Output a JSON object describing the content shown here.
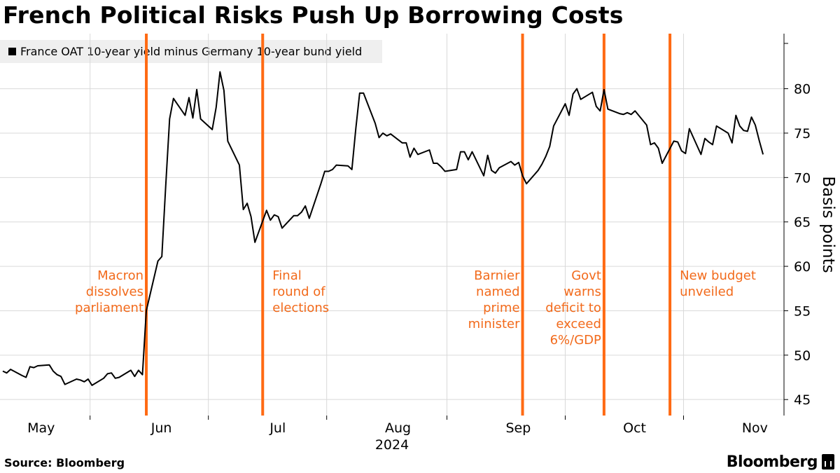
{
  "header": {
    "title": "French Political Risks Push Up Borrowing Costs"
  },
  "footer": {
    "source": "Source: Bloomberg",
    "brand": "Bloomberg"
  },
  "colors": {
    "line": "#000000",
    "event_line": "#ff6a13",
    "event_text": "#f26a1b",
    "grid": "#d9d9d9",
    "legend_bg": "#efefef"
  },
  "chart_data": {
    "type": "line",
    "title": "French Political Risks Push Up Borrowing Costs",
    "ylabel": "Basis points",
    "xlabel": "",
    "year_label": "2024",
    "ylim": [
      43.2,
      86.2
    ],
    "yticks": [
      45,
      50,
      55,
      60,
      65,
      70,
      75,
      80
    ],
    "grid": true,
    "legend_position": "top-left",
    "x_range": [
      "2024-04-24",
      "2024-11-04"
    ],
    "x_ticks": [
      {
        "date": "2024-05-01",
        "label": "May"
      },
      {
        "date": "2024-06-01",
        "label": "Jun"
      },
      {
        "date": "2024-07-01",
        "label": "Jul"
      },
      {
        "date": "2024-08-01",
        "label": "Aug"
      },
      {
        "date": "2024-09-01",
        "label": "Sep"
      },
      {
        "date": "2024-10-01",
        "label": "Oct"
      },
      {
        "date": "2024-11-01",
        "label": "Nov"
      }
    ],
    "series": [
      {
        "name": "France OAT 10-year yield minus Germany 10-year bund yield",
        "points": [
          [
            "2024-04-24",
            48.2
          ],
          [
            "2024-04-25",
            48.0
          ],
          [
            "2024-04-26",
            48.4
          ],
          [
            "2024-04-29",
            47.7
          ],
          [
            "2024-04-30",
            47.5
          ],
          [
            "2024-05-01",
            48.7
          ],
          [
            "2024-05-02",
            48.6
          ],
          [
            "2024-05-03",
            48.8
          ],
          [
            "2024-05-06",
            48.9
          ],
          [
            "2024-05-07",
            48.2
          ],
          [
            "2024-05-08",
            47.8
          ],
          [
            "2024-05-09",
            47.6
          ],
          [
            "2024-05-10",
            46.7
          ],
          [
            "2024-05-13",
            47.3
          ],
          [
            "2024-05-14",
            47.2
          ],
          [
            "2024-05-15",
            47.0
          ],
          [
            "2024-05-16",
            47.3
          ],
          [
            "2024-05-17",
            46.6
          ],
          [
            "2024-05-20",
            47.4
          ],
          [
            "2024-05-21",
            47.9
          ],
          [
            "2024-05-22",
            48.0
          ],
          [
            "2024-05-23",
            47.4
          ],
          [
            "2024-05-24",
            47.5
          ],
          [
            "2024-05-27",
            48.3
          ],
          [
            "2024-05-28",
            47.6
          ],
          [
            "2024-05-29",
            48.3
          ],
          [
            "2024-05-30",
            47.8
          ],
          [
            "2024-05-31",
            55.0
          ],
          [
            "2024-06-03",
            60.6
          ],
          [
            "2024-06-04",
            61.1
          ],
          [
            "2024-06-05",
            69.0
          ],
          [
            "2024-06-06",
            76.6
          ],
          [
            "2024-06-07",
            78.9
          ],
          [
            "2024-06-10",
            77.0
          ],
          [
            "2024-06-11",
            79.0
          ],
          [
            "2024-06-12",
            76.7
          ],
          [
            "2024-06-13",
            79.9
          ],
          [
            "2024-06-14",
            76.6
          ],
          [
            "2024-06-17",
            75.4
          ],
          [
            "2024-06-18",
            77.9
          ],
          [
            "2024-06-19",
            81.9
          ],
          [
            "2024-06-20",
            79.8
          ],
          [
            "2024-06-21",
            74.1
          ],
          [
            "2024-06-24",
            71.4
          ],
          [
            "2024-06-25",
            66.4
          ],
          [
            "2024-06-26",
            67.1
          ],
          [
            "2024-06-27",
            65.6
          ],
          [
            "2024-06-28",
            62.7
          ],
          [
            "2024-07-01",
            66.3
          ],
          [
            "2024-07-02",
            65.2
          ],
          [
            "2024-07-03",
            65.8
          ],
          [
            "2024-07-04",
            65.6
          ],
          [
            "2024-07-05",
            64.3
          ],
          [
            "2024-07-08",
            65.7
          ],
          [
            "2024-07-09",
            65.7
          ],
          [
            "2024-07-10",
            66.1
          ],
          [
            "2024-07-11",
            66.8
          ],
          [
            "2024-07-12",
            65.4
          ],
          [
            "2024-07-15",
            69.3
          ],
          [
            "2024-07-16",
            70.7
          ],
          [
            "2024-07-17",
            70.7
          ],
          [
            "2024-07-18",
            70.9
          ],
          [
            "2024-07-19",
            71.4
          ],
          [
            "2024-07-22",
            71.3
          ],
          [
            "2024-07-23",
            70.9
          ],
          [
            "2024-07-24",
            75.5
          ],
          [
            "2024-07-25",
            79.5
          ],
          [
            "2024-07-26",
            79.5
          ],
          [
            "2024-07-29",
            76.1
          ],
          [
            "2024-07-30",
            74.5
          ],
          [
            "2024-07-31",
            75.0
          ],
          [
            "2024-08-01",
            74.7
          ],
          [
            "2024-08-02",
            74.9
          ],
          [
            "2024-08-05",
            73.9
          ],
          [
            "2024-08-06",
            73.9
          ],
          [
            "2024-08-07",
            72.3
          ],
          [
            "2024-08-08",
            73.3
          ],
          [
            "2024-08-09",
            72.6
          ],
          [
            "2024-08-12",
            73.1
          ],
          [
            "2024-08-13",
            71.6
          ],
          [
            "2024-08-14",
            71.6
          ],
          [
            "2024-08-15",
            71.2
          ],
          [
            "2024-08-16",
            70.7
          ],
          [
            "2024-08-19",
            70.9
          ],
          [
            "2024-08-20",
            72.9
          ],
          [
            "2024-08-21",
            72.9
          ],
          [
            "2024-08-22",
            72.0
          ],
          [
            "2024-08-23",
            72.9
          ],
          [
            "2024-08-26",
            70.2
          ],
          [
            "2024-08-27",
            72.5
          ],
          [
            "2024-08-28",
            70.8
          ],
          [
            "2024-08-29",
            70.5
          ],
          [
            "2024-08-30",
            71.1
          ],
          [
            "2024-09-02",
            71.8
          ],
          [
            "2024-09-03",
            71.4
          ],
          [
            "2024-09-04",
            71.7
          ],
          [
            "2024-09-05",
            70.2
          ],
          [
            "2024-09-06",
            69.3
          ],
          [
            "2024-09-09",
            70.8
          ],
          [
            "2024-09-10",
            71.5
          ],
          [
            "2024-09-11",
            72.4
          ],
          [
            "2024-09-12",
            73.5
          ],
          [
            "2024-09-13",
            75.8
          ],
          [
            "2024-09-16",
            78.3
          ],
          [
            "2024-09-17",
            77.0
          ],
          [
            "2024-09-18",
            79.4
          ],
          [
            "2024-09-19",
            80.0
          ],
          [
            "2024-09-20",
            78.8
          ],
          [
            "2024-09-23",
            79.6
          ],
          [
            "2024-09-24",
            78.0
          ],
          [
            "2024-09-25",
            77.5
          ],
          [
            "2024-09-26",
            79.9
          ],
          [
            "2024-09-27",
            77.7
          ],
          [
            "2024-09-30",
            77.2
          ],
          [
            "2024-10-01",
            77.1
          ],
          [
            "2024-10-02",
            77.3
          ],
          [
            "2024-10-03",
            77.1
          ],
          [
            "2024-10-04",
            77.5
          ],
          [
            "2024-10-07",
            75.9
          ],
          [
            "2024-10-08",
            73.7
          ],
          [
            "2024-10-09",
            73.9
          ],
          [
            "2024-10-10",
            73.3
          ],
          [
            "2024-10-11",
            71.6
          ],
          [
            "2024-10-14",
            74.1
          ],
          [
            "2024-10-15",
            74.0
          ],
          [
            "2024-10-16",
            73.0
          ],
          [
            "2024-10-17",
            72.7
          ],
          [
            "2024-10-18",
            75.5
          ],
          [
            "2024-10-21",
            72.6
          ],
          [
            "2024-10-22",
            74.4
          ],
          [
            "2024-10-23",
            74.0
          ],
          [
            "2024-10-24",
            73.7
          ],
          [
            "2024-10-25",
            75.8
          ],
          [
            "2024-10-28",
            75.0
          ],
          [
            "2024-10-29",
            73.9
          ],
          [
            "2024-10-30",
            77.0
          ],
          [
            "2024-10-31",
            75.8
          ],
          [
            "2024-11-01",
            75.3
          ],
          [
            "2024-11-02",
            75.2
          ],
          [
            "2024-11-03",
            76.8
          ],
          [
            "2024-11-04",
            75.9
          ],
          [
            "2024-11-05",
            74.2
          ],
          [
            "2024-11-06",
            72.6
          ]
        ]
      }
    ],
    "events": [
      {
        "date": "2024-05-31",
        "lines": [
          "Macron",
          "dissolves",
          "parliament"
        ],
        "align": "right"
      },
      {
        "date": "2024-06-30",
        "lines": [
          "Final",
          "round of",
          "elections"
        ],
        "align": "left"
      },
      {
        "date": "2024-09-05",
        "lines": [
          "Barnier",
          "named",
          "prime",
          "minister"
        ],
        "align": "right"
      },
      {
        "date": "2024-09-26",
        "lines": [
          "Govt",
          "warns",
          "deficit to",
          "exceed",
          "6%/GDP"
        ],
        "align": "right"
      },
      {
        "date": "2024-10-13",
        "lines": [
          "New budget",
          "unveiled"
        ],
        "align": "left"
      }
    ]
  }
}
